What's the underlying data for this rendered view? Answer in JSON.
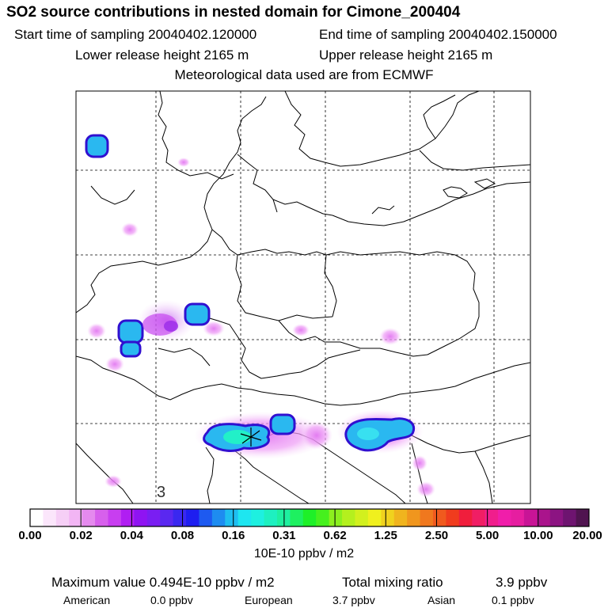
{
  "header": {
    "title": "SO2 source contributions in nested domain for Cimone_200404",
    "start_time": "Start time of sampling 20040402.120000",
    "end_time": "End time of sampling 20040402.150000",
    "lower_height": "Lower release height 2165 m",
    "upper_height": "Upper release height 2165 m",
    "met_data": "Meteorological data used are from ECMWF"
  },
  "map": {
    "corner_label": "3",
    "receptor_marker": "star-cross"
  },
  "colorbar": {
    "tick_labels": [
      "0.00",
      "0.02",
      "0.04",
      "0.08",
      "0.16",
      "0.31",
      "0.62",
      "1.25",
      "2.50",
      "5.00",
      "10.00",
      "20.00"
    ],
    "unit": "10E-10 ppbv / m2",
    "colors": [
      "#ffffff",
      "#fbe6fb",
      "#f6cff6",
      "#f2b5f4",
      "#e58aee",
      "#d760ec",
      "#c83ef0",
      "#b01ef2",
      "#8f14f2",
      "#7a1ef2",
      "#5a28f0",
      "#3a28f0",
      "#1e1ef0",
      "#1e5af0",
      "#1e8cf0",
      "#1ebef0",
      "#1ee6f0",
      "#1ef0e0",
      "#1ef0c0",
      "#1ef0a0",
      "#1ef060",
      "#1ef028",
      "#46f01e",
      "#8cf01e",
      "#b4f01e",
      "#d2f01e",
      "#f0f01e",
      "#f0d21e",
      "#f0b41e",
      "#f0961e",
      "#f0781e",
      "#f05a1e",
      "#f03c1e",
      "#f01e3c",
      "#f01e64",
      "#f01e8c",
      "#f01eaa",
      "#e61ea0",
      "#c81496",
      "#aa148c",
      "#8c1482",
      "#6e1470",
      "#501450"
    ]
  },
  "stats": {
    "max_value": "Maximum value  0.494E-10 ppbv / m2",
    "total_label": "Total mixing ratio",
    "total_value": "3.9 ppbv",
    "american_label": "American",
    "american_value": "0.0 ppbv",
    "european_label": "European",
    "european_value": "3.7 ppbv",
    "asian_label": "Asian",
    "asian_value": "0.1 ppbv"
  }
}
